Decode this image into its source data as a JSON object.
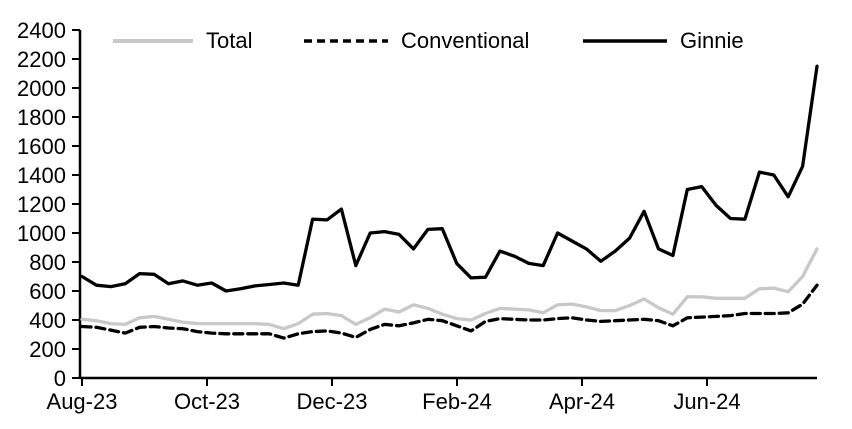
{
  "chart_data": {
    "type": "line",
    "title": "",
    "legend_position": "top",
    "grid": false,
    "background": "#ffffff",
    "axis_color": "#000000",
    "x_axis": {
      "tick_labels": [
        "Aug-23",
        "Oct-23",
        "Dec-23",
        "Feb-24",
        "Apr-24",
        "Jun-24"
      ]
    },
    "y_axis": {
      "min": 0,
      "max": 2400,
      "step": 200,
      "tick_labels": [
        "0",
        "200",
        "400",
        "600",
        "800",
        "1000",
        "1200",
        "1400",
        "1600",
        "1800",
        "2000",
        "2200",
        "2400"
      ]
    },
    "series": [
      {
        "name": "Total",
        "color": "#c8c8c8",
        "style": "solid",
        "values": [
          405,
          395,
          375,
          370,
          415,
          425,
          405,
          385,
          375,
          375,
          375,
          375,
          375,
          370,
          340,
          375,
          440,
          445,
          430,
          370,
          415,
          475,
          455,
          505,
          480,
          440,
          410,
          400,
          445,
          480,
          475,
          470,
          450,
          505,
          510,
          490,
          465,
          465,
          500,
          545,
          485,
          440,
          560,
          560,
          550,
          550,
          550,
          615,
          620,
          595,
          700,
          890
        ]
      },
      {
        "name": "Conventional",
        "color": "#000000",
        "style": "dashed",
        "values": [
          355,
          350,
          330,
          310,
          350,
          355,
          345,
          340,
          320,
          310,
          305,
          305,
          305,
          305,
          275,
          305,
          320,
          325,
          310,
          280,
          335,
          370,
          360,
          380,
          405,
          395,
          360,
          325,
          390,
          410,
          405,
          400,
          400,
          410,
          415,
          400,
          390,
          395,
          400,
          405,
          395,
          360,
          415,
          420,
          425,
          430,
          445,
          445,
          445,
          450,
          510,
          640
        ]
      },
      {
        "name": "Ginnie",
        "color": "#000000",
        "style": "solid",
        "values": [
          700,
          640,
          630,
          650,
          720,
          715,
          650,
          670,
          640,
          655,
          600,
          615,
          635,
          645,
          655,
          640,
          1095,
          1090,
          1165,
          775,
          1000,
          1010,
          990,
          890,
          1025,
          1030,
          790,
          690,
          695,
          875,
          840,
          790,
          775,
          1000,
          945,
          890,
          805,
          875,
          965,
          1150,
          890,
          845,
          1300,
          1320,
          1190,
          1100,
          1095,
          1420,
          1400,
          1250,
          1460,
          2150
        ]
      }
    ]
  }
}
